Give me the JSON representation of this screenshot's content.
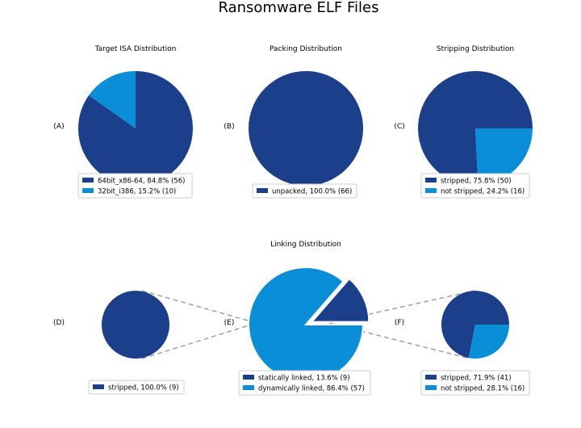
{
  "page": {
    "title": "Ransomware ELF Files"
  },
  "colors": {
    "dark": "#1b3f8a",
    "light": "#0a8ed8",
    "connector": "#a0a0a0"
  },
  "chart_data": [
    {
      "id": "A",
      "panel_label": "(A)",
      "type": "pie",
      "title": "Target ISA Distribution",
      "slices": [
        {
          "label": "64bit_x86-64",
          "percent": 84.8,
          "count": 56,
          "legend": "64bit_x86-64, 84.8% (56)",
          "color": "#1b3f8a"
        },
        {
          "label": "32bit_i386",
          "percent": 15.2,
          "count": 10,
          "legend": "32bit_i386, 15.2% (10)",
          "color": "#0a8ed8"
        }
      ]
    },
    {
      "id": "B",
      "panel_label": "(B)",
      "type": "pie",
      "title": "Packing Distribution",
      "slices": [
        {
          "label": "unpacked",
          "percent": 100.0,
          "count": 66,
          "legend": "unpacked, 100.0% (66)",
          "color": "#1b3f8a"
        }
      ]
    },
    {
      "id": "C",
      "panel_label": "(C)",
      "type": "pie",
      "title": "Stripping Distribution",
      "slices": [
        {
          "label": "stripped",
          "percent": 75.8,
          "count": 50,
          "legend": "stripped, 75.8% (50)",
          "color": "#1b3f8a"
        },
        {
          "label": "not stripped",
          "percent": 24.2,
          "count": 16,
          "legend": "not stripped, 24.2% (16)",
          "color": "#0a8ed8"
        }
      ]
    },
    {
      "id": "D",
      "panel_label": "(D)",
      "type": "pie",
      "title": "",
      "slices": [
        {
          "label": "stripped",
          "percent": 100.0,
          "count": 9,
          "legend": "stripped, 100.0% (9)",
          "color": "#1b3f8a"
        }
      ]
    },
    {
      "id": "E",
      "panel_label": "(E)",
      "type": "pie",
      "title": "Linking Distribution",
      "slices": [
        {
          "label": "statically linked",
          "percent": 13.6,
          "count": 9,
          "legend": "statically linked, 13.6% (9)",
          "color": "#1b3f8a",
          "exploded": true
        },
        {
          "label": "dynamically linked",
          "percent": 86.4,
          "count": 57,
          "legend": "dynamically linked, 86.4% (57)",
          "color": "#0a8ed8"
        }
      ]
    },
    {
      "id": "F",
      "panel_label": "(F)",
      "type": "pie",
      "title": "",
      "slices": [
        {
          "label": "stripped",
          "percent": 71.9,
          "count": 41,
          "legend": "stripped, 71.9% (41)",
          "color": "#1b3f8a"
        },
        {
          "label": "not stripped",
          "percent": 28.1,
          "count": 16,
          "legend": "not stripped, 28.1% (16)",
          "color": "#0a8ed8"
        }
      ]
    }
  ]
}
